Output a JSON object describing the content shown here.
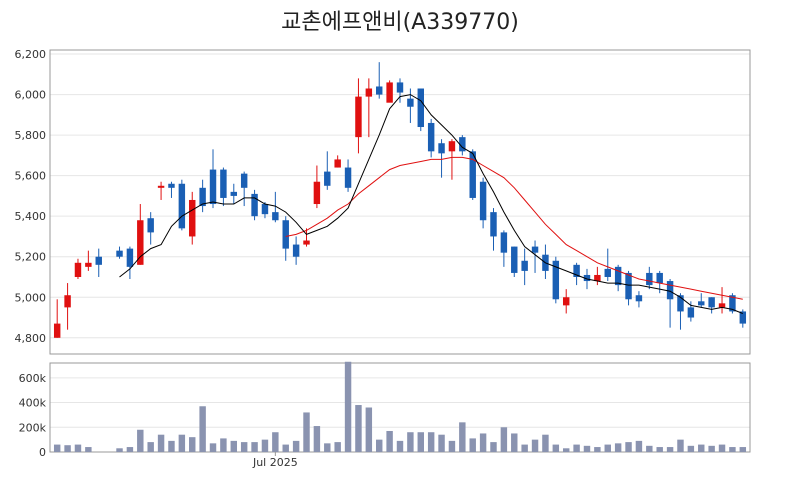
{
  "title": "교촌에프앤비(A339770)",
  "colors": {
    "up": "#e01010",
    "down": "#1a5fb4",
    "ma5": "#000000",
    "ma20": "#e01010",
    "volume": "#8a93b0",
    "grid": "#e6e6e6",
    "axis": "#999999"
  },
  "chart_data": [
    {
      "type": "candlestick",
      "title": "교촌에프앤비(A339770)",
      "ylim": [
        4720,
        6220
      ],
      "yticks": [
        4800,
        5000,
        5200,
        5400,
        5600,
        5800,
        6000,
        6200
      ],
      "ytick_labels": [
        "4,800",
        "5,000",
        "5,200",
        "5,400",
        "5,600",
        "5,800",
        "6,000",
        "6,200"
      ],
      "grid": true,
      "gap_after_index": 4,
      "candles": [
        [
          4800,
          4870,
          4990,
          4800
        ],
        [
          4950,
          5010,
          5070,
          4840
        ],
        [
          5100,
          5170,
          5190,
          5090
        ],
        [
          5150,
          5170,
          5230,
          5130
        ],
        [
          5200,
          5160,
          5240,
          5100
        ],
        [
          5230,
          5200,
          5250,
          5190
        ],
        [
          5240,
          5150,
          5250,
          5090
        ],
        [
          5160,
          5380,
          5460,
          5160
        ],
        [
          5390,
          5320,
          5420,
          5260
        ],
        [
          5540,
          5550,
          5570,
          5480
        ],
        [
          5560,
          5540,
          5570,
          5490
        ],
        [
          5560,
          5340,
          5580,
          5330
        ],
        [
          5300,
          5480,
          5520,
          5260
        ],
        [
          5540,
          5450,
          5580,
          5420
        ],
        [
          5630,
          5460,
          5730,
          5440
        ],
        [
          5630,
          5490,
          5640,
          5450
        ],
        [
          5520,
          5500,
          5560,
          5460
        ],
        [
          5610,
          5540,
          5620,
          5450
        ],
        [
          5510,
          5400,
          5530,
          5380
        ],
        [
          5460,
          5410,
          5470,
          5390
        ],
        [
          5420,
          5380,
          5520,
          5370
        ],
        [
          5380,
          5240,
          5400,
          5180
        ],
        [
          5260,
          5200,
          5300,
          5160
        ],
        [
          5260,
          5280,
          5340,
          5250
        ],
        [
          5460,
          5570,
          5650,
          5440
        ],
        [
          5620,
          5550,
          5720,
          5530
        ],
        [
          5640,
          5680,
          5700,
          5640
        ],
        [
          5640,
          5540,
          5680,
          5520
        ],
        [
          5790,
          5990,
          6080,
          5710
        ],
        [
          5990,
          6030,
          6080,
          5790
        ],
        [
          6040,
          6000,
          6160,
          5980
        ],
        [
          5960,
          6060,
          6070,
          5970
        ],
        [
          6060,
          6010,
          6080,
          5960
        ],
        [
          5980,
          5940,
          6030,
          5860
        ],
        [
          6030,
          5840,
          6030,
          5820
        ],
        [
          5860,
          5720,
          5880,
          5690
        ],
        [
          5760,
          5710,
          5780,
          5590
        ],
        [
          5720,
          5770,
          5780,
          5580
        ],
        [
          5790,
          5720,
          5800,
          5700
        ],
        [
          5720,
          5490,
          5730,
          5480
        ],
        [
          5570,
          5380,
          5590,
          5340
        ],
        [
          5420,
          5300,
          5440,
          5230
        ],
        [
          5320,
          5220,
          5330,
          5150
        ],
        [
          5250,
          5120,
          5250,
          5100
        ],
        [
          5180,
          5130,
          5240,
          5060
        ],
        [
          5250,
          5220,
          5280,
          5120
        ],
        [
          5210,
          5130,
          5260,
          5090
        ],
        [
          5180,
          4990,
          5200,
          4970
        ],
        [
          4960,
          5000,
          5040,
          4920
        ],
        [
          5160,
          5100,
          5170,
          5060
        ],
        [
          5110,
          5080,
          5140,
          5040
        ],
        [
          5080,
          5110,
          5150,
          5060
        ],
        [
          5140,
          5100,
          5240,
          5080
        ],
        [
          5150,
          5060,
          5160,
          5030
        ],
        [
          5120,
          4990,
          5130,
          4960
        ],
        [
          5010,
          4980,
          5030,
          4950
        ],
        [
          5120,
          5060,
          5150,
          5040
        ],
        [
          5120,
          5070,
          5130,
          5020
        ],
        [
          5080,
          4990,
          5090,
          4850
        ],
        [
          5010,
          4930,
          5020,
          4840
        ],
        [
          4950,
          4900,
          4980,
          4880
        ],
        [
          4980,
          4960,
          5020,
          4950
        ],
        [
          5000,
          4950,
          5000,
          4920
        ],
        [
          4950,
          4970,
          5050,
          4920
        ],
        [
          5010,
          4930,
          5020,
          4920
        ],
        [
          4930,
          4870,
          4940,
          4850
        ]
      ],
      "ma5": [
        null,
        null,
        null,
        null,
        null,
        5100,
        5140,
        5200,
        5240,
        5260,
        5350,
        5400,
        5430,
        5460,
        5470,
        5460,
        5460,
        5490,
        5490,
        5460,
        5450,
        5420,
        5370,
        5310,
        5330,
        5350,
        5390,
        5440,
        5560,
        5680,
        5800,
        5930,
        5990,
        6000,
        5970,
        5900,
        5850,
        5800,
        5740,
        5710,
        5610,
        5520,
        5420,
        5330,
        5250,
        5210,
        5170,
        5150,
        5130,
        5110,
        5090,
        5080,
        5070,
        5070,
        5060,
        5060,
        5050,
        5040,
        5030,
        5000,
        4960,
        4950,
        4940,
        4950,
        4940,
        4920
      ],
      "ma20": [
        null,
        null,
        null,
        null,
        null,
        null,
        null,
        null,
        null,
        null,
        null,
        null,
        null,
        null,
        null,
        null,
        null,
        null,
        null,
        null,
        null,
        5300,
        5310,
        5330,
        5360,
        5390,
        5430,
        5460,
        5510,
        5550,
        5590,
        5630,
        5650,
        5660,
        5670,
        5680,
        5680,
        5690,
        5690,
        5680,
        5650,
        5620,
        5590,
        5540,
        5480,
        5420,
        5360,
        5310,
        5260,
        5230,
        5200,
        5170,
        5150,
        5130,
        5110,
        5090,
        5080,
        5070,
        5060,
        5050,
        5040,
        5030,
        5020,
        5010,
        5000,
        4990
      ]
    },
    {
      "type": "bar",
      "xlabel_ticks": [
        {
          "index": 20,
          "label": "Jul 2025"
        }
      ],
      "ylim": [
        0,
        720000
      ],
      "yticks": [
        0,
        200000,
        400000,
        600000
      ],
      "ytick_labels": [
        "0",
        "200k",
        "400k",
        "600k"
      ],
      "values": [
        60000,
        55000,
        60000,
        40000,
        0,
        30000,
        40000,
        180000,
        80000,
        140000,
        90000,
        140000,
        120000,
        370000,
        70000,
        110000,
        90000,
        80000,
        80000,
        100000,
        160000,
        60000,
        90000,
        320000,
        210000,
        70000,
        80000,
        730000,
        380000,
        360000,
        100000,
        170000,
        90000,
        160000,
        160000,
        160000,
        140000,
        90000,
        240000,
        110000,
        150000,
        80000,
        200000,
        150000,
        60000,
        100000,
        140000,
        60000,
        30000,
        60000,
        50000,
        40000,
        60000,
        70000,
        80000,
        90000,
        50000,
        40000,
        40000,
        100000,
        50000,
        60000,
        50000,
        60000,
        40000,
        40000
      ]
    }
  ]
}
